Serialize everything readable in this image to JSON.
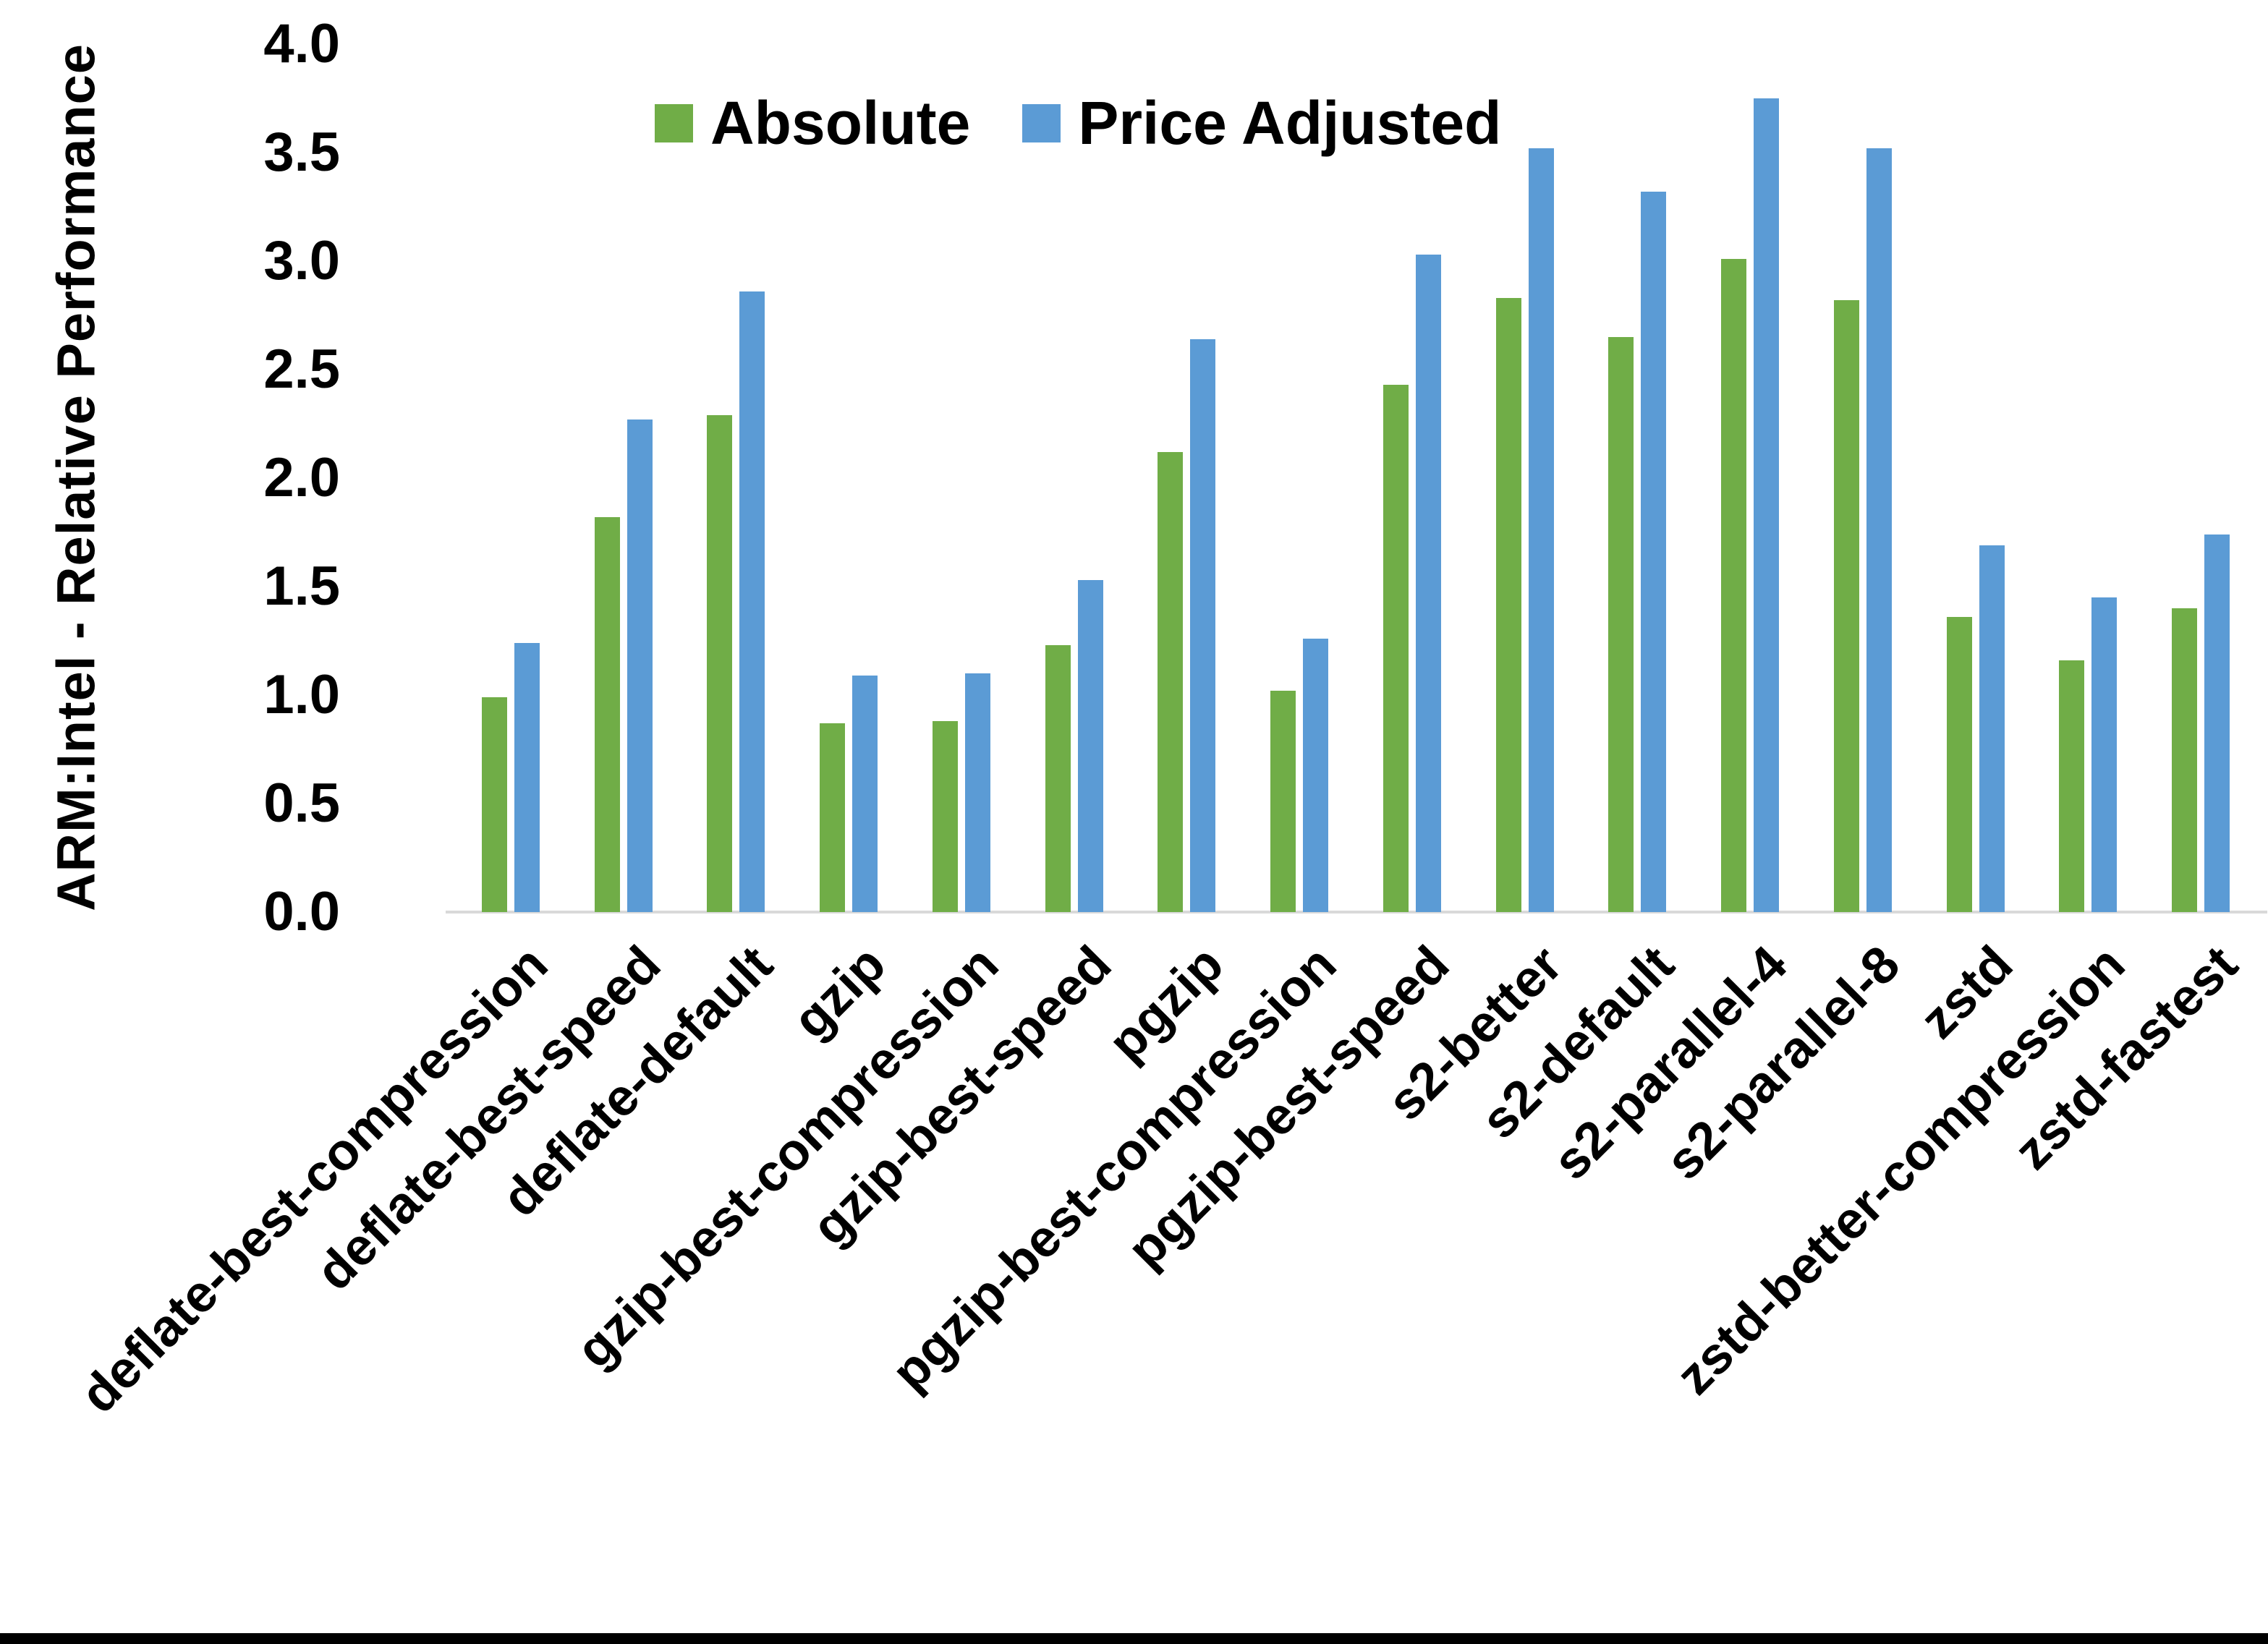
{
  "chart_data": {
    "type": "bar",
    "title": "",
    "xlabel": "",
    "ylabel": "ARM:Intel - Relative Performance",
    "ylim": [
      0.0,
      4.0
    ],
    "yticks": [
      4.0,
      3.5,
      3.0,
      2.5,
      2.0,
      1.5,
      1.0,
      0.5,
      0.0
    ],
    "grid": false,
    "legend_position": "top-center",
    "axis_line_color": "#D9D9D9",
    "text_color": "#000000",
    "categories": [
      "deflate-best-compression",
      "deflate-best-speed",
      "deflate-default",
      "gzip",
      "gzip-best-compression",
      "gzip-best-speed",
      "pgzip",
      "pgzip-best-compression",
      "pgzip-best-speed",
      "s2-better",
      "s2-default",
      "s2-parallel-4",
      "s2-parallel-8",
      "zstd",
      "zstd-better-compression",
      "zstd-fastest"
    ],
    "series": [
      {
        "name": "Absolute",
        "color": "#70AD47",
        "values": [
          0.99,
          1.82,
          2.29,
          0.87,
          0.88,
          1.23,
          2.12,
          1.02,
          2.43,
          2.83,
          2.65,
          3.01,
          2.82,
          1.36,
          1.16,
          1.4
        ]
      },
      {
        "name": "Price Adjusted",
        "color": "#5B9BD5",
        "values": [
          1.24,
          2.27,
          2.86,
          1.09,
          1.1,
          1.53,
          2.64,
          1.26,
          3.03,
          3.52,
          3.32,
          3.75,
          3.52,
          1.69,
          1.45,
          1.74
        ]
      }
    ]
  }
}
